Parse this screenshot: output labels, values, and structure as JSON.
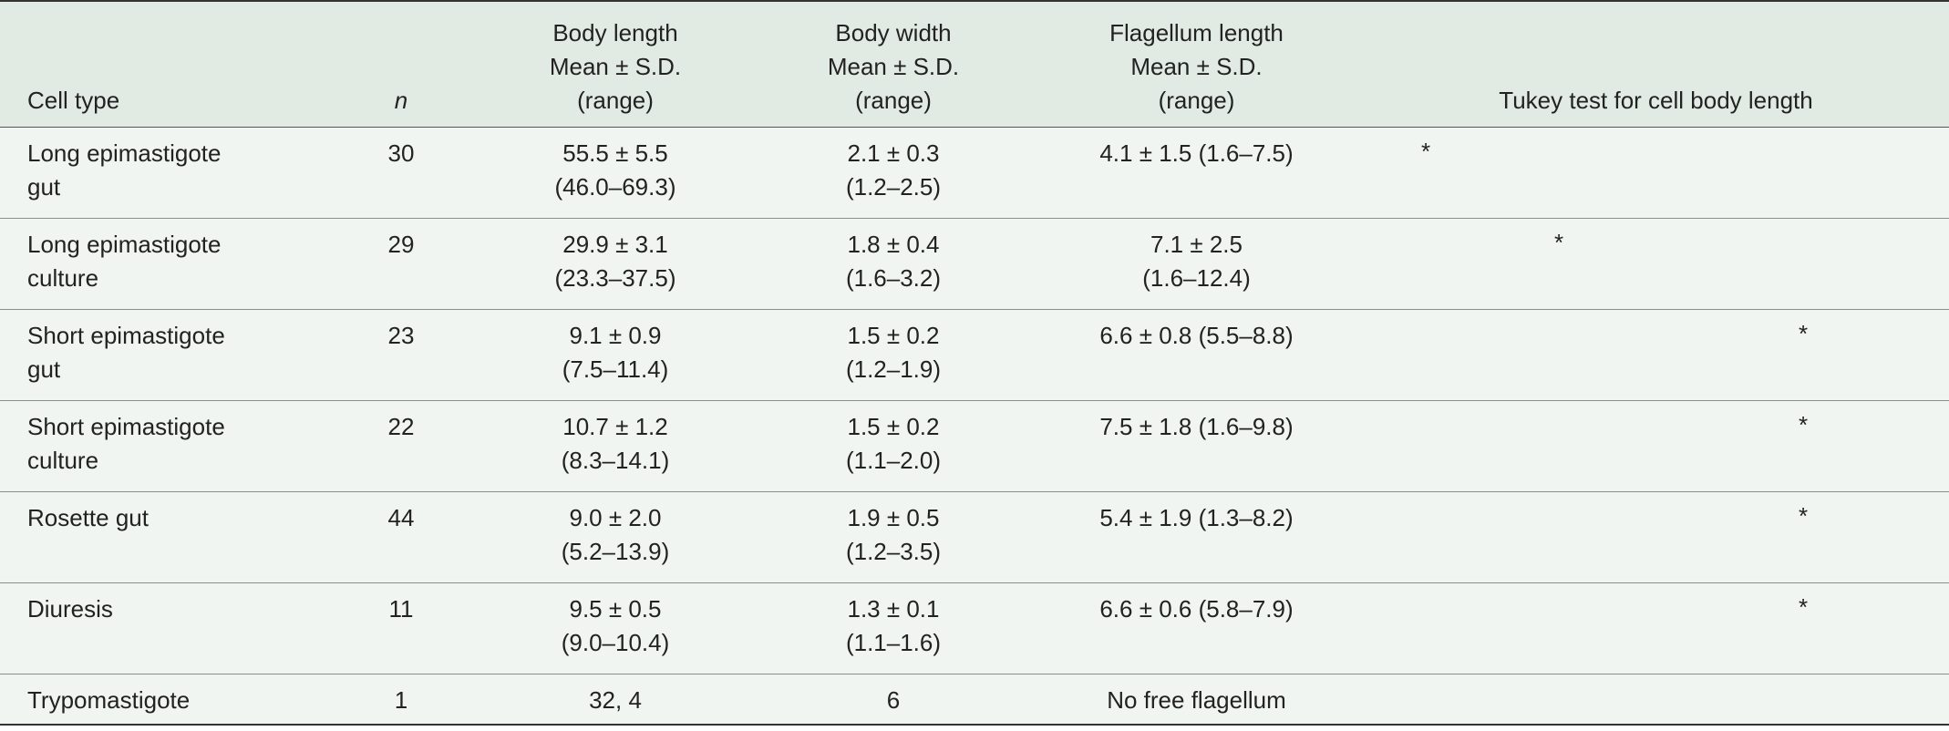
{
  "table": {
    "header": {
      "cell_type": "Cell type",
      "n": "n",
      "body_length": [
        "Body length",
        "Mean ± S.D.",
        "(range)"
      ],
      "body_width": [
        "Body width",
        "Mean ± S.D.",
        "(range)"
      ],
      "flagellum_length": [
        "Flagellum length",
        "Mean ± S.D.",
        "(range)"
      ],
      "tukey": "Tukey test for cell body length"
    },
    "rows": [
      {
        "cell_type": [
          "Long epimastigote",
          "gut"
        ],
        "n": "30",
        "body_length": [
          "55.5 ± 5.5",
          "(46.0–69.3)"
        ],
        "body_width": [
          "2.1 ± 0.3",
          "(1.2–2.5)"
        ],
        "flagellum_length": [
          "4.1 ± 1.5 (1.6–7.5)"
        ],
        "tukey": [
          "*",
          null,
          null
        ]
      },
      {
        "cell_type": [
          "Long epimastigote",
          "culture"
        ],
        "n": "29",
        "body_length": [
          "29.9 ± 3.1",
          "(23.3–37.5)"
        ],
        "body_width": [
          "1.8 ± 0.4",
          "(1.6–3.2)"
        ],
        "flagellum_length": [
          "7.1 ± 2.5",
          "(1.6–12.4)"
        ],
        "tukey": [
          null,
          "*",
          null
        ]
      },
      {
        "cell_type": [
          "Short epimastigote",
          "gut"
        ],
        "n": "23",
        "body_length": [
          "9.1 ± 0.9",
          "(7.5–11.4)"
        ],
        "body_width": [
          "1.5 ± 0.2",
          "(1.2–1.9)"
        ],
        "flagellum_length": [
          "6.6 ± 0.8 (5.5–8.8)"
        ],
        "tukey": [
          null,
          null,
          "*"
        ]
      },
      {
        "cell_type": [
          "Short epimastigote",
          "culture"
        ],
        "n": "22",
        "body_length": [
          "10.7 ± 1.2",
          "(8.3–14.1)"
        ],
        "body_width": [
          "1.5 ± 0.2",
          "(1.1–2.0)"
        ],
        "flagellum_length": [
          "7.5 ± 1.8 (1.6–9.8)"
        ],
        "tukey": [
          null,
          null,
          "*"
        ]
      },
      {
        "cell_type": [
          "Rosette gut"
        ],
        "n": "44",
        "body_length": [
          "9.0 ± 2.0",
          "(5.2–13.9)"
        ],
        "body_width": [
          "1.9 ± 0.5",
          "(1.2–3.5)"
        ],
        "flagellum_length": [
          "5.4 ± 1.9 (1.3–8.2)"
        ],
        "tukey": [
          null,
          null,
          "*"
        ]
      },
      {
        "cell_type": [
          "Diuresis"
        ],
        "n": "11",
        "body_length": [
          "9.5 ± 0.5",
          "(9.0–10.4)"
        ],
        "body_width": [
          "1.3 ± 0.1",
          "(1.1–1.6)"
        ],
        "flagellum_length": [
          "6.6 ± 0.6 (5.8–7.9)"
        ],
        "tukey": [
          null,
          null,
          "*"
        ]
      },
      {
        "cell_type": [
          "Trypomastigote"
        ],
        "n": "1",
        "body_length": [
          "32, 4"
        ],
        "body_width": [
          "6"
        ],
        "flagellum_length": [
          "No free flagellum"
        ],
        "tukey": [
          null,
          null,
          null
        ]
      }
    ]
  }
}
